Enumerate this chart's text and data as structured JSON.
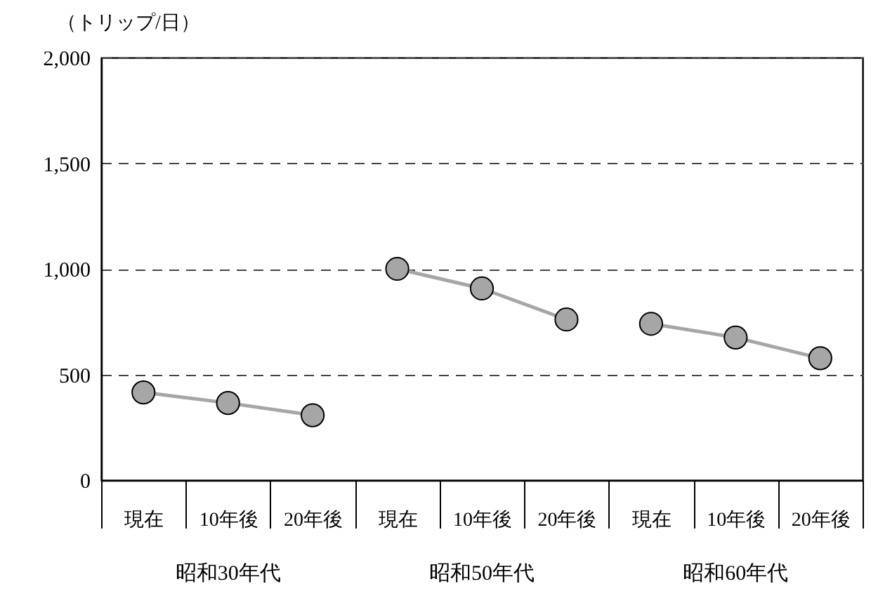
{
  "chart_data": {
    "type": "line",
    "ylabel": "（トリップ/日）",
    "categories": [
      "現在",
      "10年後",
      "20年後",
      "現在",
      "10年後",
      "20年後",
      "現在",
      "10年後",
      "20年後"
    ],
    "series": [
      {
        "color": "#a6a6a6",
        "values": [
          415,
          365,
          307,
          null,
          null,
          null,
          null,
          null,
          null
        ]
      },
      {
        "color": "#a6a6a6",
        "values": [
          null,
          null,
          null,
          1000,
          907,
          760,
          null,
          null,
          null
        ]
      },
      {
        "color": "#a6a6a6",
        "values": [
          null,
          null,
          null,
          null,
          null,
          null,
          740,
          675,
          577
        ]
      }
    ],
    "annotations": [
      "昭和30年代",
      "昭和50年代",
      "昭和60年代"
    ],
    "ylim": [
      0,
      2000
    ],
    "yticks": [
      0,
      {
        "value": 500,
        "label": "500"
      },
      {
        "value": 1000,
        "label": "1,000"
      },
      {
        "value": 1500,
        "label": "1,500"
      },
      {
        "value": 2000,
        "label": "2,000"
      }
    ],
    "grid": "y",
    "marker": "circle",
    "line_style": "solid"
  }
}
